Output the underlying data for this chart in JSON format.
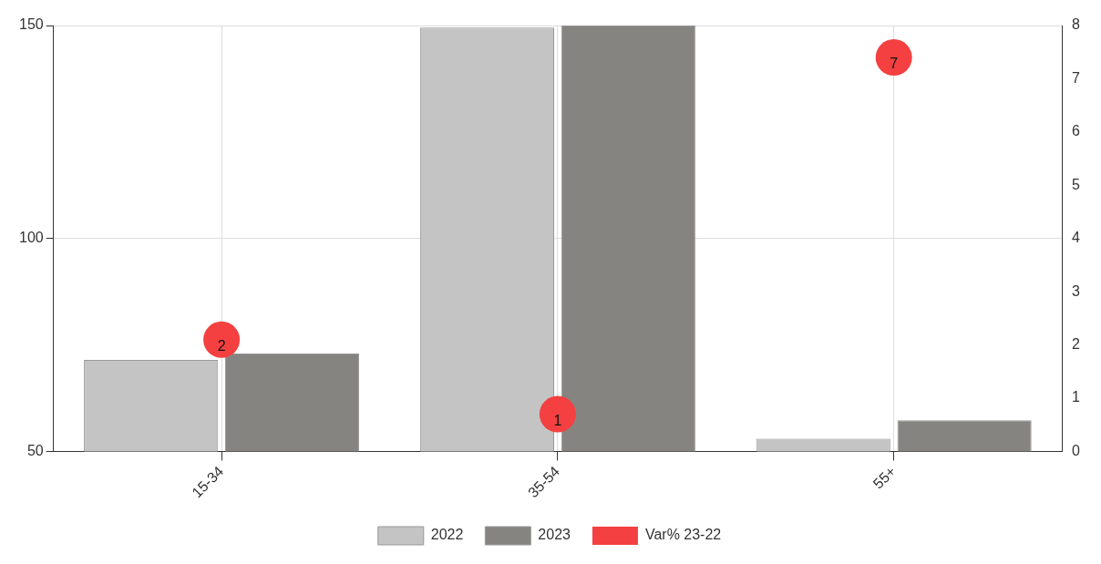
{
  "chart_data": {
    "type": "bar",
    "categories": [
      "15-34",
      "35-54",
      "55+"
    ],
    "series": [
      {
        "name": "2022",
        "color": "#c4c4c4",
        "values": [
          71.5,
          149.5,
          53
        ]
      },
      {
        "name": "2023",
        "color": "#858480",
        "values": [
          73,
          150,
          57.3
        ]
      },
      {
        "name": "Var% 23-22",
        "type": "scatter",
        "axis": "y2",
        "color": "#f44040",
        "values": [
          2.1,
          0.7,
          7.4
        ],
        "value_labels": [
          "2",
          "1",
          "7"
        ]
      }
    ],
    "ylim": [
      50,
      150
    ],
    "yticks": [
      50,
      100,
      150
    ],
    "y2lim": [
      0,
      8
    ],
    "y2ticks": [
      0,
      1,
      2,
      3,
      4,
      5,
      6,
      7,
      8
    ],
    "grid": true,
    "legend": "bottom",
    "marker": "circle"
  }
}
